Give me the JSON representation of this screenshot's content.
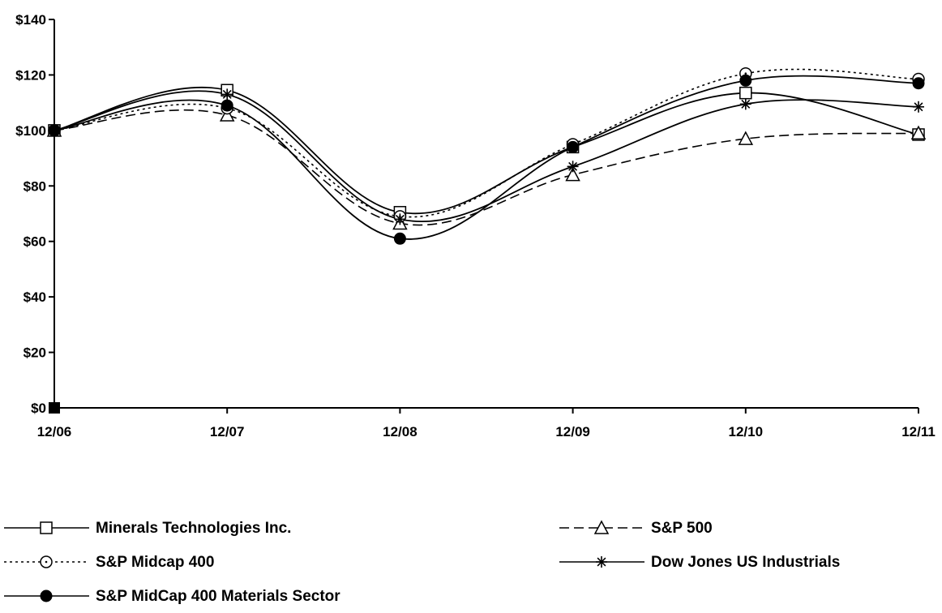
{
  "chart_data": {
    "type": "line",
    "title": "",
    "xlabel": "",
    "ylabel": "",
    "categories": [
      "12/06",
      "12/07",
      "12/08",
      "12/09",
      "12/10",
      "12/11"
    ],
    "y_tick_labels": [
      "$0",
      "$20",
      "$40",
      "$60",
      "$80",
      "$100",
      "$120",
      "$140"
    ],
    "y_tick_values": [
      0,
      20,
      40,
      60,
      80,
      100,
      120,
      140
    ],
    "ylim": [
      0,
      140
    ],
    "grid": false,
    "legend_position": "bottom",
    "series": [
      {
        "name": "Minerals Technologies Inc.",
        "values": [
          100,
          114.5,
          70.5,
          94,
          113.5,
          98.5
        ],
        "marker": "square-open",
        "dash": "solid",
        "color": "#000000"
      },
      {
        "name": "S&P 500",
        "values": [
          100,
          105.5,
          66.5,
          84,
          97,
          99
        ],
        "marker": "triangle-open",
        "dash": "dashed",
        "color": "#000000"
      },
      {
        "name": "S&P Midcap 400",
        "values": [
          100,
          108,
          69,
          95,
          120.5,
          118.5
        ],
        "marker": "circle-open",
        "dash": "dotted",
        "color": "#000000"
      },
      {
        "name": "Dow Jones US Industrials",
        "values": [
          100,
          113,
          68,
          87,
          109.5,
          108.5
        ],
        "marker": "star",
        "dash": "solid",
        "color": "#000000"
      },
      {
        "name": "S&P MidCap 400 Materials Sector",
        "values": [
          100,
          109,
          61,
          94,
          118,
          117
        ],
        "marker": "circle-filled",
        "dash": "solid",
        "color": "#000000"
      }
    ]
  }
}
